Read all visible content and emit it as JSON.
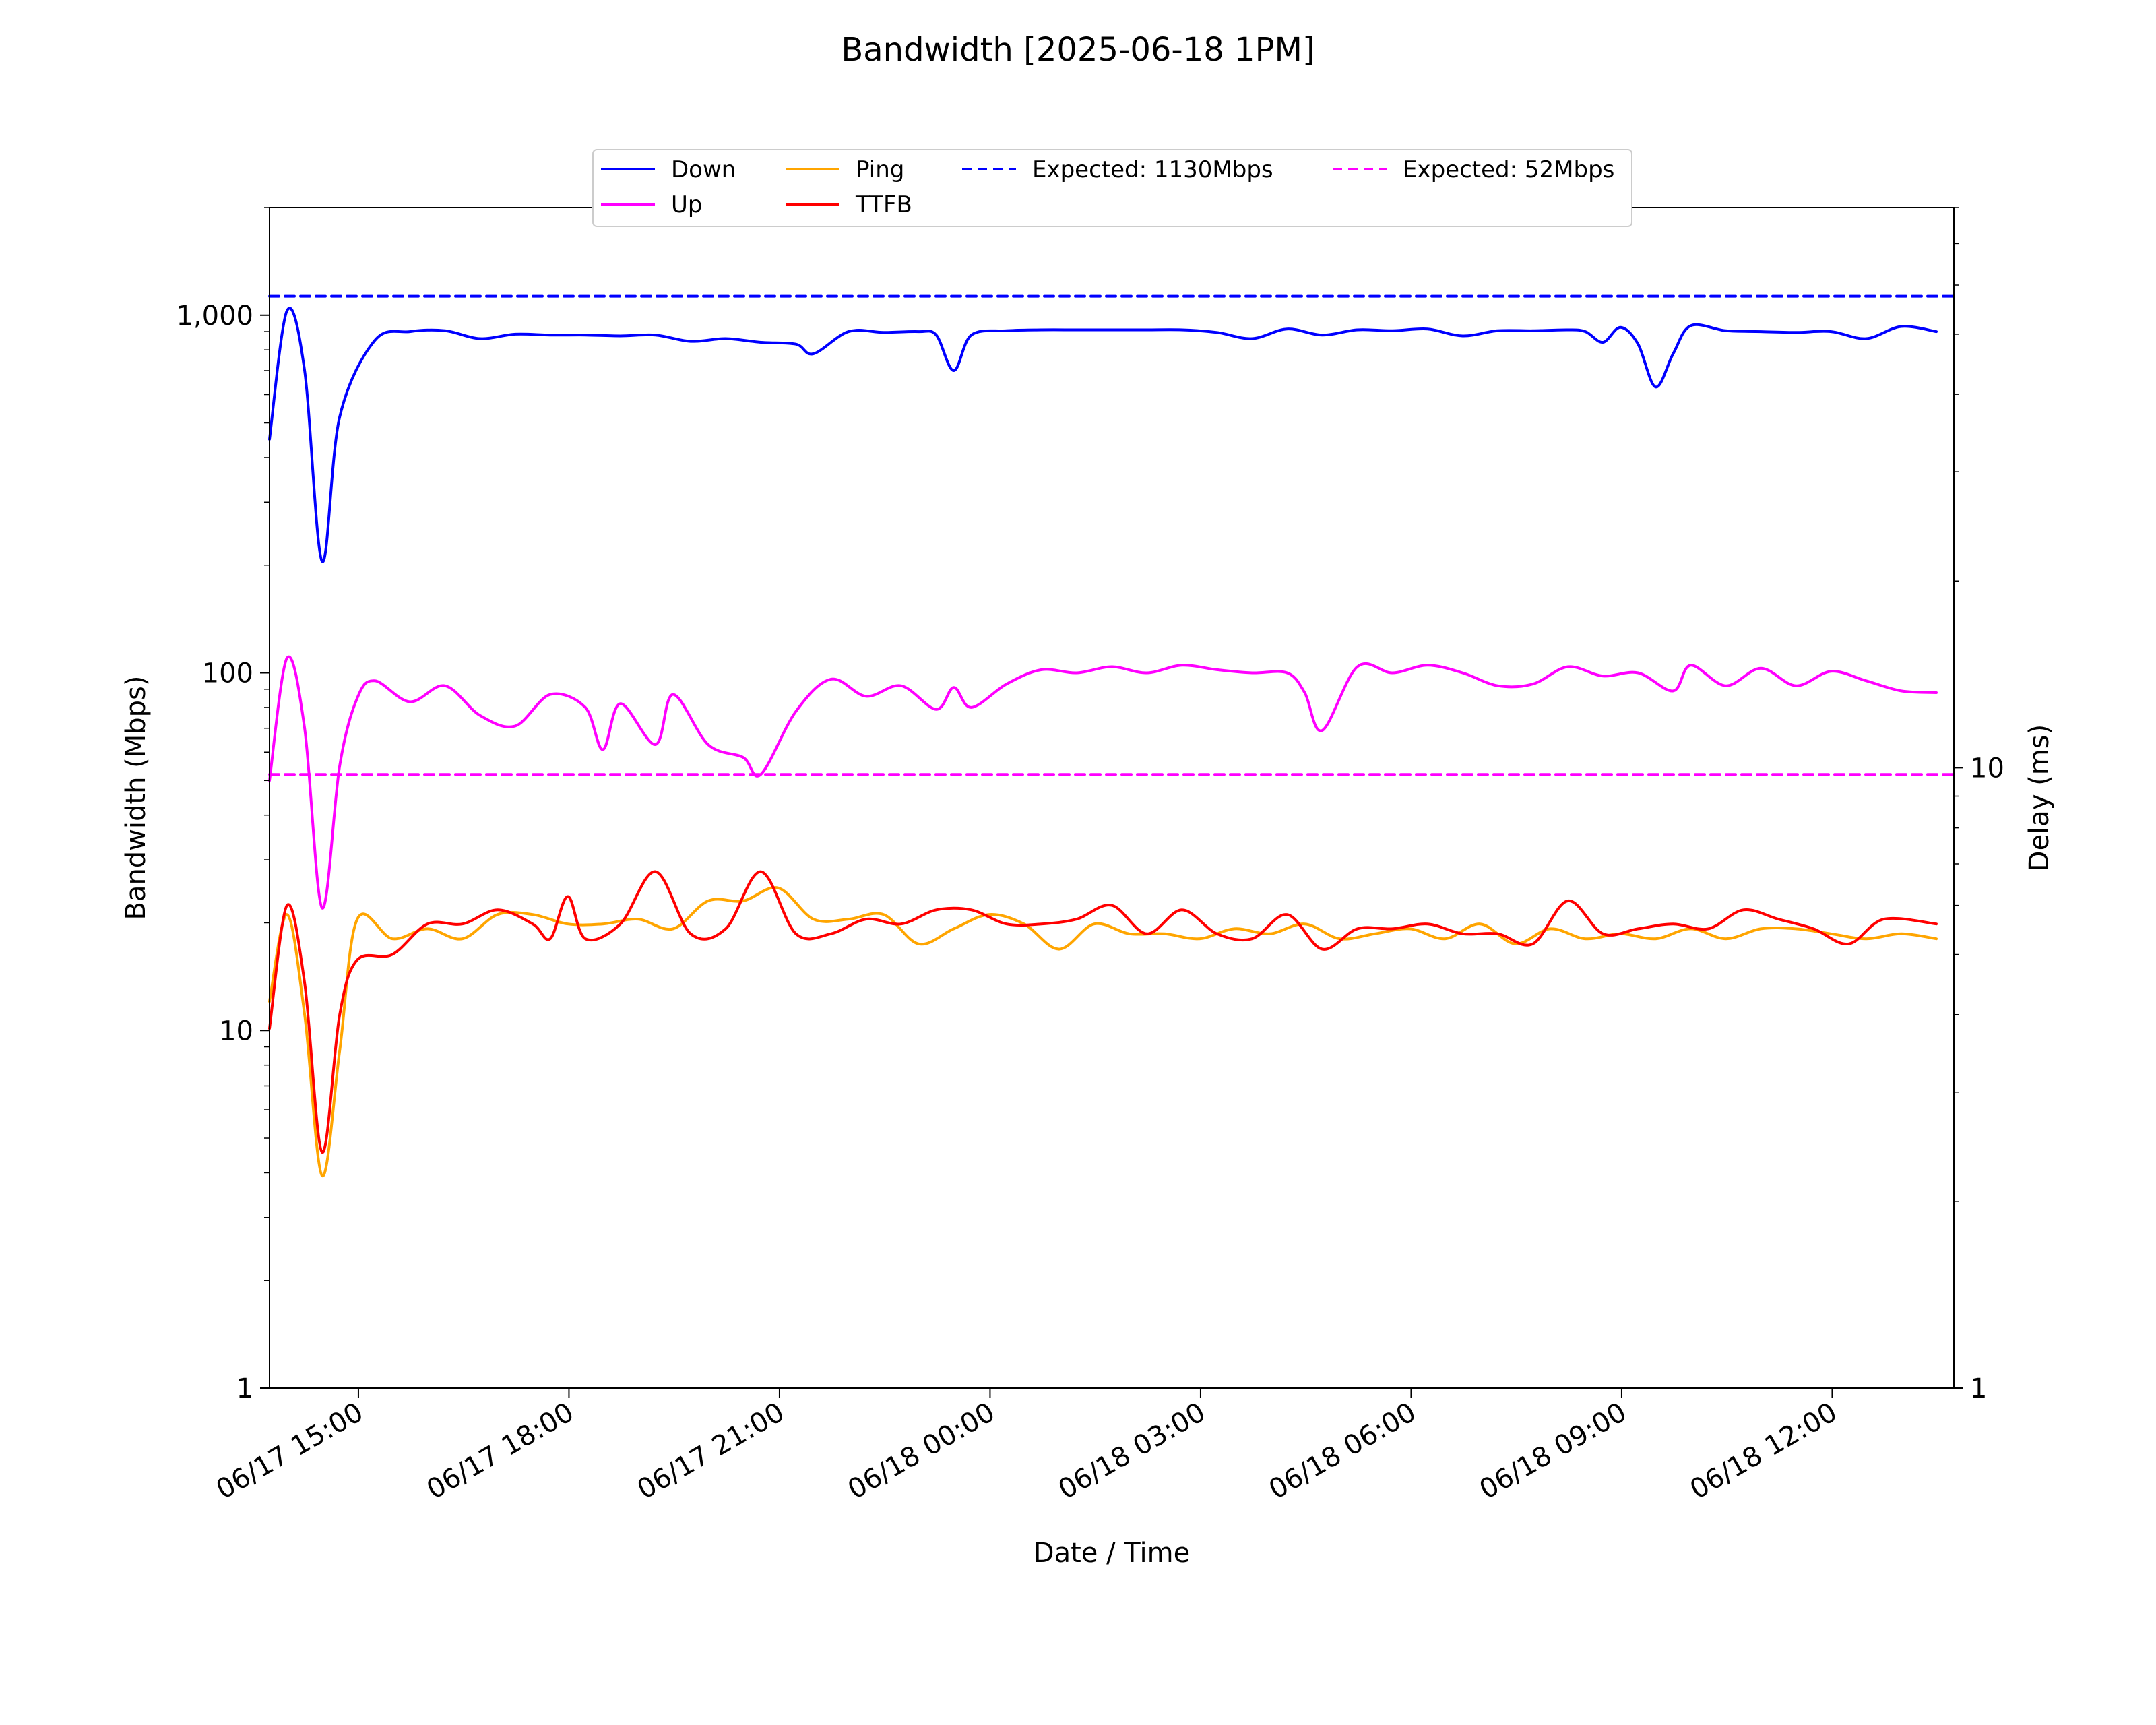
{
  "chart_data": {
    "type": "line",
    "title": "Bandwidth [2025-06-18 1PM]",
    "xlabel": "Date / Time",
    "ylabel": "Bandwidth (Mbps)",
    "y2label": "Delay (ms)",
    "yscale": "log",
    "y2scale": "log",
    "xlim": [
      "2025-06-17 13:44",
      "2025-06-18 13:44"
    ],
    "ylim": [
      1,
      2000
    ],
    "y2lim": [
      1,
      80
    ],
    "grid": false,
    "legend_position": "top-center",
    "x_ticks": [
      {
        "t": "2025-06-17 15:00",
        "label": "06/17 15:00"
      },
      {
        "t": "2025-06-17 18:00",
        "label": "06/17 18:00"
      },
      {
        "t": "2025-06-17 21:00",
        "label": "06/17 21:00"
      },
      {
        "t": "2025-06-18 00:00",
        "label": "06/18 00:00"
      },
      {
        "t": "2025-06-18 03:00",
        "label": "06/18 03:00"
      },
      {
        "t": "2025-06-18 06:00",
        "label": "06/18 06:00"
      },
      {
        "t": "2025-06-18 09:00",
        "label": "06/18 09:00"
      },
      {
        "t": "2025-06-18 12:00",
        "label": "06/18 12:00"
      }
    ],
    "y_ticks": [
      {
        "v": 1,
        "label": "1"
      },
      {
        "v": 10,
        "label": "10"
      },
      {
        "v": 100,
        "label": "100"
      },
      {
        "v": 1000,
        "label": "1,000"
      }
    ],
    "y2_ticks": [
      {
        "v": 1,
        "label": "1"
      },
      {
        "v": 10,
        "label": "10"
      }
    ],
    "series": [
      {
        "name": "Down",
        "axis": "left",
        "color": "#0000ff",
        "style": "solid",
        "points": [
          [
            "2025-06-17 13:44",
            450
          ],
          [
            "2025-06-17 13:59",
            1030
          ],
          [
            "2025-06-17 14:14",
            700
          ],
          [
            "2025-06-17 14:29",
            205
          ],
          [
            "2025-06-17 14:44",
            520
          ],
          [
            "2025-06-17 15:14",
            850
          ],
          [
            "2025-06-17 15:44",
            900
          ],
          [
            "2025-06-17 16:14",
            905
          ],
          [
            "2025-06-17 16:44",
            860
          ],
          [
            "2025-06-17 17:14",
            885
          ],
          [
            "2025-06-17 17:44",
            880
          ],
          [
            "2025-06-17 18:14",
            880
          ],
          [
            "2025-06-17 18:44",
            875
          ],
          [
            "2025-06-17 19:14",
            880
          ],
          [
            "2025-06-17 19:44",
            845
          ],
          [
            "2025-06-17 20:14",
            860
          ],
          [
            "2025-06-17 20:44",
            840
          ],
          [
            "2025-06-17 21:14",
            830
          ],
          [
            "2025-06-17 21:29",
            780
          ],
          [
            "2025-06-17 21:59",
            900
          ],
          [
            "2025-06-17 22:29",
            895
          ],
          [
            "2025-06-17 22:59",
            900
          ],
          [
            "2025-06-17 23:14",
            880
          ],
          [
            "2025-06-17 23:29",
            700
          ],
          [
            "2025-06-17 23:44",
            880
          ],
          [
            "2025-06-18 00:14",
            905
          ],
          [
            "2025-06-18 00:44",
            910
          ],
          [
            "2025-06-18 01:14",
            910
          ],
          [
            "2025-06-18 01:44",
            910
          ],
          [
            "2025-06-18 02:14",
            910
          ],
          [
            "2025-06-18 02:44",
            910
          ],
          [
            "2025-06-18 03:14",
            895
          ],
          [
            "2025-06-18 03:44",
            860
          ],
          [
            "2025-06-18 04:14",
            915
          ],
          [
            "2025-06-18 04:44",
            880
          ],
          [
            "2025-06-18 05:14",
            910
          ],
          [
            "2025-06-18 05:44",
            905
          ],
          [
            "2025-06-18 06:14",
            915
          ],
          [
            "2025-06-18 06:44",
            875
          ],
          [
            "2025-06-18 07:14",
            905
          ],
          [
            "2025-06-18 07:44",
            905
          ],
          [
            "2025-06-18 08:14",
            910
          ],
          [
            "2025-06-18 08:29",
            900
          ],
          [
            "2025-06-18 08:44",
            840
          ],
          [
            "2025-06-18 08:59",
            925
          ],
          [
            "2025-06-18 09:14",
            830
          ],
          [
            "2025-06-18 09:29",
            630
          ],
          [
            "2025-06-18 09:44",
            780
          ],
          [
            "2025-06-18 09:59",
            935
          ],
          [
            "2025-06-18 10:29",
            905
          ],
          [
            "2025-06-18 10:59",
            900
          ],
          [
            "2025-06-18 11:29",
            895
          ],
          [
            "2025-06-18 11:59",
            900
          ],
          [
            "2025-06-18 12:29",
            860
          ],
          [
            "2025-06-18 12:59",
            930
          ],
          [
            "2025-06-18 13:29",
            900
          ]
        ]
      },
      {
        "name": "Up",
        "axis": "left",
        "color": "#ff00ff",
        "style": "solid",
        "points": [
          [
            "2025-06-17 13:44",
            50
          ],
          [
            "2025-06-17 13:59",
            110
          ],
          [
            "2025-06-17 14:14",
            70
          ],
          [
            "2025-06-17 14:29",
            22
          ],
          [
            "2025-06-17 14:44",
            55
          ],
          [
            "2025-06-17 14:59",
            85
          ],
          [
            "2025-06-17 15:14",
            95
          ],
          [
            "2025-06-17 15:44",
            83
          ],
          [
            "2025-06-17 16:14",
            92
          ],
          [
            "2025-06-17 16:44",
            76
          ],
          [
            "2025-06-17 17:14",
            71
          ],
          [
            "2025-06-17 17:44",
            87
          ],
          [
            "2025-06-17 18:14",
            80
          ],
          [
            "2025-06-17 18:29",
            61
          ],
          [
            "2025-06-17 18:44",
            82
          ],
          [
            "2025-06-17 19:14",
            63
          ],
          [
            "2025-06-17 19:29",
            87
          ],
          [
            "2025-06-17 19:59",
            63
          ],
          [
            "2025-06-17 20:29",
            58
          ],
          [
            "2025-06-17 20:44",
            52
          ],
          [
            "2025-06-17 21:14",
            78
          ],
          [
            "2025-06-17 21:44",
            96
          ],
          [
            "2025-06-17 22:14",
            86
          ],
          [
            "2025-06-17 22:44",
            92
          ],
          [
            "2025-06-17 23:14",
            79
          ],
          [
            "2025-06-17 23:29",
            91
          ],
          [
            "2025-06-17 23:44",
            80
          ],
          [
            "2025-06-18 00:14",
            93
          ],
          [
            "2025-06-18 00:44",
            102
          ],
          [
            "2025-06-18 01:14",
            100
          ],
          [
            "2025-06-18 01:44",
            104
          ],
          [
            "2025-06-18 02:14",
            100
          ],
          [
            "2025-06-18 02:44",
            105
          ],
          [
            "2025-06-18 03:14",
            102
          ],
          [
            "2025-06-18 03:44",
            100
          ],
          [
            "2025-06-18 04:14",
            100
          ],
          [
            "2025-06-18 04:29",
            88
          ],
          [
            "2025-06-18 04:44",
            69
          ],
          [
            "2025-06-18 05:14",
            104
          ],
          [
            "2025-06-18 05:44",
            100
          ],
          [
            "2025-06-18 06:14",
            105
          ],
          [
            "2025-06-18 06:44",
            100
          ],
          [
            "2025-06-18 07:14",
            92
          ],
          [
            "2025-06-18 07:44",
            93
          ],
          [
            "2025-06-18 08:14",
            104
          ],
          [
            "2025-06-18 08:44",
            98
          ],
          [
            "2025-06-18 09:14",
            100
          ],
          [
            "2025-06-18 09:44",
            89
          ],
          [
            "2025-06-18 09:59",
            105
          ],
          [
            "2025-06-18 10:29",
            92
          ],
          [
            "2025-06-18 10:59",
            103
          ],
          [
            "2025-06-18 11:29",
            92
          ],
          [
            "2025-06-18 11:59",
            101
          ],
          [
            "2025-06-18 12:29",
            95
          ],
          [
            "2025-06-18 12:59",
            89
          ],
          [
            "2025-06-18 13:29",
            88
          ]
        ]
      },
      {
        "name": "Ping",
        "axis": "right",
        "color": "#ffa500",
        "style": "solid",
        "points": [
          [
            "2025-06-17 13:44",
            4.2
          ],
          [
            "2025-06-17 13:59",
            5.8
          ],
          [
            "2025-06-17 14:14",
            4.0
          ],
          [
            "2025-06-17 14:29",
            2.2
          ],
          [
            "2025-06-17 14:44",
            3.5
          ],
          [
            "2025-06-17 14:59",
            5.7
          ],
          [
            "2025-06-17 15:29",
            5.3
          ],
          [
            "2025-06-17 15:59",
            5.5
          ],
          [
            "2025-06-17 16:29",
            5.3
          ],
          [
            "2025-06-17 16:59",
            5.8
          ],
          [
            "2025-06-17 17:29",
            5.8
          ],
          [
            "2025-06-17 17:59",
            5.6
          ],
          [
            "2025-06-17 18:29",
            5.6
          ],
          [
            "2025-06-17 18:59",
            5.7
          ],
          [
            "2025-06-17 19:29",
            5.5
          ],
          [
            "2025-06-17 19:59",
            6.1
          ],
          [
            "2025-06-17 20:29",
            6.1
          ],
          [
            "2025-06-17 20:59",
            6.4
          ],
          [
            "2025-06-17 21:29",
            5.7
          ],
          [
            "2025-06-17 21:59",
            5.7
          ],
          [
            "2025-06-17 22:29",
            5.8
          ],
          [
            "2025-06-17 22:59",
            5.2
          ],
          [
            "2025-06-17 23:29",
            5.5
          ],
          [
            "2025-06-17 23:59",
            5.8
          ],
          [
            "2025-06-18 00:29",
            5.6
          ],
          [
            "2025-06-18 00:59",
            5.1
          ],
          [
            "2025-06-18 01:29",
            5.6
          ],
          [
            "2025-06-18 01:59",
            5.4
          ],
          [
            "2025-06-18 02:29",
            5.4
          ],
          [
            "2025-06-18 02:59",
            5.3
          ],
          [
            "2025-06-18 03:29",
            5.5
          ],
          [
            "2025-06-18 03:59",
            5.4
          ],
          [
            "2025-06-18 04:29",
            5.6
          ],
          [
            "2025-06-18 04:59",
            5.3
          ],
          [
            "2025-06-18 05:29",
            5.4
          ],
          [
            "2025-06-18 05:59",
            5.5
          ],
          [
            "2025-06-18 06:29",
            5.3
          ],
          [
            "2025-06-18 06:59",
            5.6
          ],
          [
            "2025-06-18 07:29",
            5.2
          ],
          [
            "2025-06-18 07:59",
            5.5
          ],
          [
            "2025-06-18 08:29",
            5.3
          ],
          [
            "2025-06-18 08:59",
            5.4
          ],
          [
            "2025-06-18 09:29",
            5.3
          ],
          [
            "2025-06-18 09:59",
            5.5
          ],
          [
            "2025-06-18 10:29",
            5.3
          ],
          [
            "2025-06-18 10:59",
            5.5
          ],
          [
            "2025-06-18 11:29",
            5.5
          ],
          [
            "2025-06-18 11:59",
            5.4
          ],
          [
            "2025-06-18 12:29",
            5.3
          ],
          [
            "2025-06-18 12:59",
            5.4
          ],
          [
            "2025-06-18 13:29",
            5.3
          ]
        ]
      },
      {
        "name": "TTFB",
        "axis": "right",
        "color": "#ff0000",
        "style": "solid",
        "points": [
          [
            "2025-06-17 13:44",
            3.8
          ],
          [
            "2025-06-17 13:59",
            6.0
          ],
          [
            "2025-06-17 14:14",
            4.5
          ],
          [
            "2025-06-17 14:29",
            2.4
          ],
          [
            "2025-06-17 14:44",
            4.0
          ],
          [
            "2025-06-17 14:59",
            4.9
          ],
          [
            "2025-06-17 15:29",
            5.0
          ],
          [
            "2025-06-17 15:59",
            5.6
          ],
          [
            "2025-06-17 16:29",
            5.6
          ],
          [
            "2025-06-17 16:59",
            5.9
          ],
          [
            "2025-06-17 17:29",
            5.6
          ],
          [
            "2025-06-17 17:44",
            5.3
          ],
          [
            "2025-06-17 17:59",
            6.2
          ],
          [
            "2025-06-17 18:14",
            5.3
          ],
          [
            "2025-06-17 18:44",
            5.6
          ],
          [
            "2025-06-17 19:14",
            6.8
          ],
          [
            "2025-06-17 19:44",
            5.4
          ],
          [
            "2025-06-17 20:14",
            5.5
          ],
          [
            "2025-06-17 20:44",
            6.8
          ],
          [
            "2025-06-17 21:14",
            5.4
          ],
          [
            "2025-06-17 21:44",
            5.4
          ],
          [
            "2025-06-17 22:14",
            5.7
          ],
          [
            "2025-06-17 22:44",
            5.6
          ],
          [
            "2025-06-17 23:14",
            5.9
          ],
          [
            "2025-06-17 23:44",
            5.9
          ],
          [
            "2025-06-18 00:14",
            5.6
          ],
          [
            "2025-06-18 00:44",
            5.6
          ],
          [
            "2025-06-18 01:14",
            5.7
          ],
          [
            "2025-06-18 01:44",
            6.0
          ],
          [
            "2025-06-18 02:14",
            5.4
          ],
          [
            "2025-06-18 02:44",
            5.9
          ],
          [
            "2025-06-18 03:14",
            5.4
          ],
          [
            "2025-06-18 03:44",
            5.3
          ],
          [
            "2025-06-18 04:14",
            5.8
          ],
          [
            "2025-06-18 04:44",
            5.1
          ],
          [
            "2025-06-18 05:14",
            5.5
          ],
          [
            "2025-06-18 05:44",
            5.5
          ],
          [
            "2025-06-18 06:14",
            5.6
          ],
          [
            "2025-06-18 06:44",
            5.4
          ],
          [
            "2025-06-18 07:14",
            5.4
          ],
          [
            "2025-06-18 07:44",
            5.2
          ],
          [
            "2025-06-18 08:14",
            6.1
          ],
          [
            "2025-06-18 08:44",
            5.4
          ],
          [
            "2025-06-18 09:14",
            5.5
          ],
          [
            "2025-06-18 09:44",
            5.6
          ],
          [
            "2025-06-18 10:14",
            5.5
          ],
          [
            "2025-06-18 10:44",
            5.9
          ],
          [
            "2025-06-18 11:14",
            5.7
          ],
          [
            "2025-06-18 11:44",
            5.5
          ],
          [
            "2025-06-18 12:14",
            5.2
          ],
          [
            "2025-06-18 12:44",
            5.7
          ],
          [
            "2025-06-18 13:29",
            5.6
          ]
        ]
      },
      {
        "name": "Expected: 1130Mbps",
        "axis": "left",
        "color": "#0000ff",
        "style": "dashed",
        "points": [
          [
            "2025-06-17 13:44",
            1130
          ],
          [
            "2025-06-18 13:44",
            1130
          ]
        ]
      },
      {
        "name": "Expected: 52Mbps",
        "axis": "left",
        "color": "#ff00ff",
        "style": "dashed",
        "points": [
          [
            "2025-06-17 13:44",
            52
          ],
          [
            "2025-06-18 13:44",
            52
          ]
        ]
      }
    ]
  }
}
